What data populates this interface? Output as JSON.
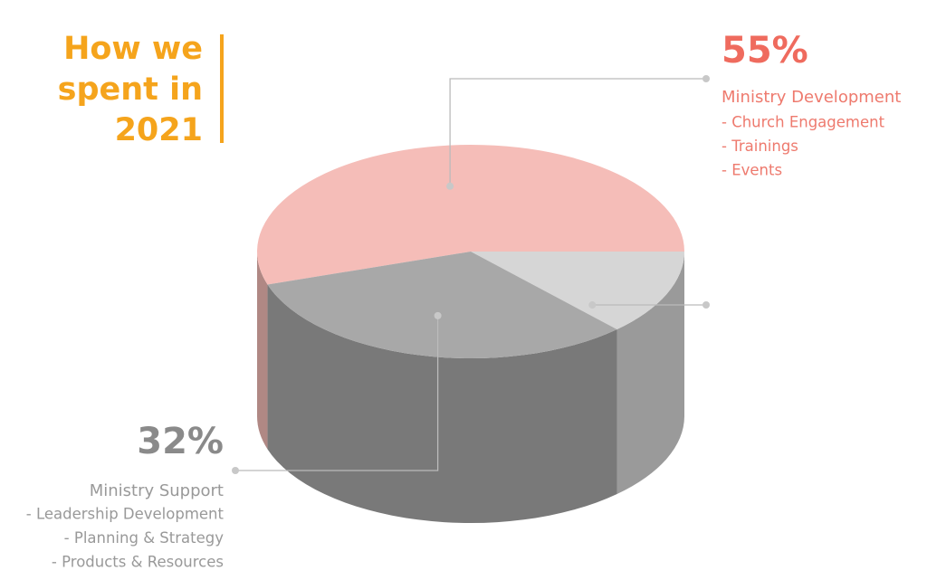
{
  "chart_data": {
    "type": "pie3d",
    "title_lines": [
      "How we",
      "spent in",
      "2021"
    ],
    "categories": [
      "Ministry Development",
      null,
      "Ministry Support"
    ],
    "values": [
      55,
      13,
      32
    ],
    "value_labels": [
      "55%",
      null,
      "32%"
    ],
    "details": [
      [
        "- Church Engagement",
        "- Trainings",
        "- Events"
      ],
      [],
      [
        "- Leadership Development",
        "- Planning & Strategy",
        "- Products & Resources"
      ]
    ],
    "colors": [
      "#f5bdb8",
      "#d6d6d6",
      "#a8a8a8"
    ]
  }
}
